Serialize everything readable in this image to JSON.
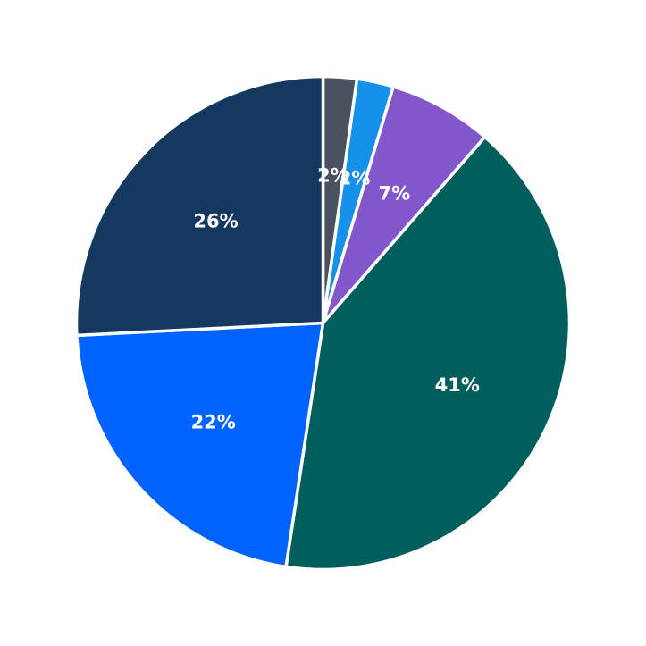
{
  "chart_data": {
    "type": "pie",
    "title": "",
    "slices": [
      {
        "value": 2.2,
        "label": "2%",
        "color": "#4a5260"
      },
      {
        "value": 2.4,
        "label": "2%",
        "color": "#1591e8"
      },
      {
        "value": 6.8,
        "label": "7%",
        "color": "#8456cc"
      },
      {
        "value": 41.0,
        "label": "41%",
        "color": "#005e5d"
      },
      {
        "value": 21.8,
        "label": "22%",
        "color": "#0163fe"
      },
      {
        "value": 25.8,
        "label": "26%",
        "color": "#143860"
      }
    ],
    "start": "12 o'clock",
    "direction": "clockwise",
    "legend": "none"
  }
}
